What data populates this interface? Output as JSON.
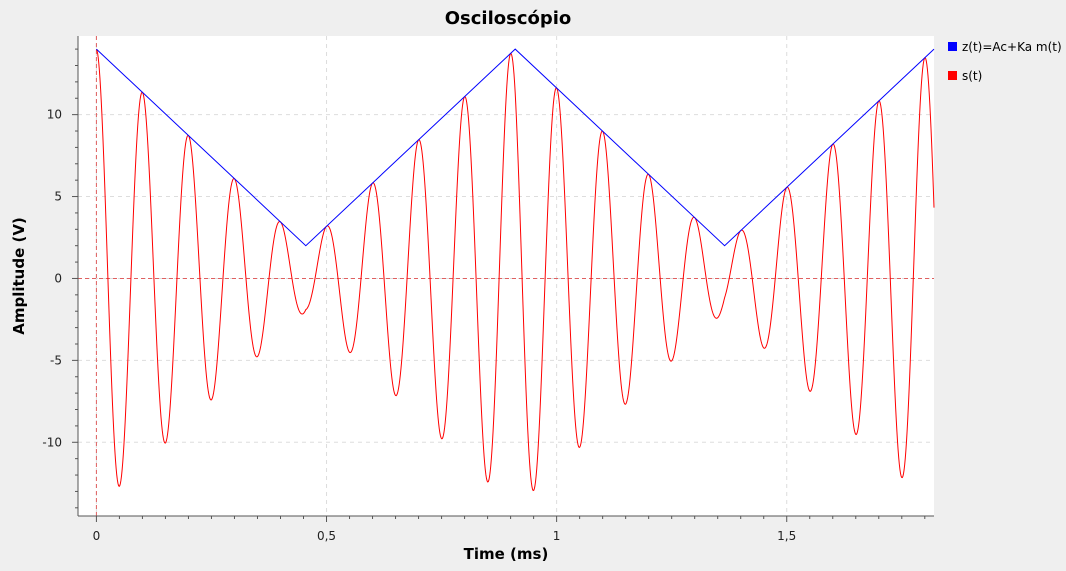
{
  "chart_data": {
    "type": "line",
    "title": "Osciloscópio",
    "xlabel": "Time (ms)",
    "ylabel": "Amplitude (V)",
    "xlim": [
      -0.04,
      1.82
    ],
    "ylim": [
      -14.5,
      14.8
    ],
    "x_ticks": [
      0,
      0.5,
      1,
      1.5
    ],
    "x_tick_labels": [
      "0",
      "0,5",
      "1",
      "1,5"
    ],
    "y_ticks": [
      -10,
      -5,
      0,
      5,
      10
    ],
    "y_tick_labels": [
      "-10",
      "-5",
      "0",
      "5",
      "10"
    ],
    "grid": true,
    "legend_position": "right",
    "series": [
      {
        "name": "z(t)=Ac+Ka m(t)",
        "color": "#0000ff",
        "x": [
          0,
          0.455,
          0.91,
          1.365,
          1.82
        ],
        "y": [
          14,
          2,
          14,
          2,
          14
        ]
      },
      {
        "name": "s(t)",
        "color": "#ff0000",
        "carrier_frequency_kHz": 10,
        "envelope_series": "z(t)=Ac+Ka m(t)",
        "x_range": [
          0,
          1.82
        ],
        "y_range": [
          -14,
          14
        ]
      }
    ],
    "reference_lines": [
      {
        "axis": "y",
        "value": 0,
        "color": "#e06060",
        "style": "dashed"
      },
      {
        "axis": "x",
        "value": 0,
        "color": "#e06060",
        "style": "dashed"
      }
    ]
  }
}
